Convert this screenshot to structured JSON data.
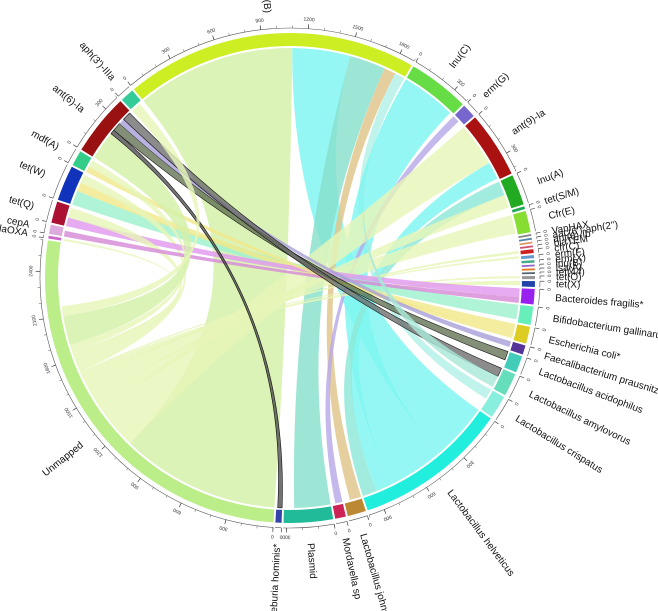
{
  "chart_data": {
    "type": "chord",
    "background": "#ffffff",
    "sectors": [
      {
        "name": "erm(B)",
        "value": 1900,
        "color": "#ccee22",
        "ticks": [
          0,
          300,
          600,
          900,
          1200,
          1500,
          1800
        ],
        "tick_step": 100
      },
      {
        "name": "lnu(C)",
        "value": 400,
        "color": "#66dd44",
        "ticks": [
          0,
          300
        ],
        "tick_step": 100
      },
      {
        "name": "erm(G)",
        "value": 90,
        "color": "#7766cc",
        "ticks": [
          0
        ],
        "tick_step": 0
      },
      {
        "name": "ant(9)-Ia",
        "value": 430,
        "color": "#aa1111",
        "ticks": [
          0,
          300
        ],
        "tick_step": 100
      },
      {
        "name": "lnu(A)",
        "value": 200,
        "color": "#22aa22",
        "ticks": [
          0
        ],
        "tick_step": 0
      },
      {
        "name": "tet(S/M)",
        "value": 18,
        "color": "#22aa55",
        "ticks": [
          0
        ],
        "tick_step": 0
      },
      {
        "name": "Cfr(E)",
        "value": 140,
        "color": "#88dd33",
        "ticks": [
          0
        ],
        "tick_step": 0
      },
      {
        "name": "VanHAX",
        "value": 12,
        "color": "#888888",
        "ticks": [
          0
        ],
        "tick_step": 0
      },
      {
        "name": "aac(6')-aph(2'')",
        "value": 12,
        "color": "#5588aa",
        "ticks": [
          0
        ],
        "tick_step": 0
      },
      {
        "name": "ant(6)-Ib",
        "value": 12,
        "color": "#dd9966",
        "ticks": [
          0
        ],
        "tick_step": 0
      },
      {
        "name": "blaTEM",
        "value": 12,
        "color": "#cc5577",
        "ticks": [
          0
        ],
        "tick_step": 0
      },
      {
        "name": "cfr(C)",
        "value": 25,
        "color": "#cc2222",
        "ticks": [
          0
        ],
        "tick_step": 0
      },
      {
        "name": "erm(F)",
        "value": 20,
        "color": "#6699cc",
        "ticks": [
          0
        ],
        "tick_step": 0
      },
      {
        "name": "erm(X)",
        "value": 16,
        "color": "#44aa88",
        "ticks": [
          0
        ],
        "tick_step": 0
      },
      {
        "name": "lnu(B)",
        "value": 12,
        "color": "#9966cc",
        "ticks": [
          0
        ],
        "tick_step": 0
      },
      {
        "name": "lsa(A)",
        "value": 12,
        "color": "#dd7722",
        "ticks": [
          0
        ],
        "tick_step": 0
      },
      {
        "name": "tet(44)",
        "value": 12,
        "color": "#556677",
        "ticks": [
          0
        ],
        "tick_step": 0
      },
      {
        "name": "tet(O)",
        "value": 20,
        "color": "#999999",
        "ticks": [
          0
        ],
        "tick_step": 0
      },
      {
        "name": "tet(X)",
        "value": 38,
        "color": "#2244aa",
        "ticks": [
          0
        ],
        "tick_step": 0
      },
      {
        "name": "Bacteroides fragilis*",
        "value": 100,
        "color": "#9922ee",
        "ticks": [
          0
        ],
        "tick_step": 0
      },
      {
        "name": "Bifidobacterium gallinarum",
        "value": 120,
        "color": "#66eebb",
        "ticks": [
          0
        ],
        "tick_step": 0
      },
      {
        "name": "Escherichia coli*",
        "value": 110,
        "color": "#ddcc22",
        "ticks": [
          0
        ],
        "tick_step": 0
      },
      {
        "name": "Faecalibacterium prausnitzii*",
        "value": 60,
        "color": "#553399",
        "ticks": [
          0
        ],
        "tick_step": 0
      },
      {
        "name": "Lactobacillus acidophilus",
        "value": 110,
        "color": "#44ccbb",
        "ticks": [
          0
        ],
        "tick_step": 0
      },
      {
        "name": "Lactobacillus amylovorus",
        "value": 150,
        "color": "#66ddbb",
        "ticks": [
          0
        ],
        "tick_step": 0
      },
      {
        "name": "Lactobacillus crispatus",
        "value": 150,
        "color": "#88eedd",
        "ticks": [
          0
        ],
        "tick_step": 0
      },
      {
        "name": "Lactobacillus helveticus",
        "value": 1000,
        "color": "#22eedd",
        "ticks": [
          0,
          300,
          600,
          900
        ],
        "tick_step": 100
      },
      {
        "name": "Lactobacillus johnsonii",
        "value": 120,
        "color": "#bb8833",
        "ticks": [
          0
        ],
        "tick_step": 0
      },
      {
        "name": "Mordavella sp",
        "value": 70,
        "color": "#cc2255",
        "ticks": [
          0
        ],
        "tick_step": 0
      },
      {
        "name": "Plasmid",
        "value": 320,
        "color": "#22bb99",
        "ticks": [
          0,
          300
        ],
        "tick_step": 100
      },
      {
        "name": "Roseburia hominis*",
        "value": 40,
        "color": "#3344aa",
        "ticks": [
          0
        ],
        "tick_step": 0
      },
      {
        "name": "Unmapped",
        "value": 2600,
        "color": "#bbee88",
        "ticks": [
          0,
          300,
          600,
          900,
          1200,
          1500,
          1800,
          2100,
          2400
        ],
        "tick_step": 100
      },
      {
        "name": "blaOXA",
        "value": 18,
        "color": "#cc66cc",
        "ticks": [
          0
        ],
        "tick_step": 0
      },
      {
        "name": "cepA",
        "value": 60,
        "color": "#ddaadd",
        "ticks": [
          0
        ],
        "tick_step": 0
      },
      {
        "name": "tet(Q)",
        "value": 140,
        "color": "#aa1133",
        "ticks": [
          0
        ],
        "tick_step": 0
      },
      {
        "name": "tet(W)",
        "value": 230,
        "color": "#1133bb",
        "ticks": [
          0
        ],
        "tick_step": 0
      },
      {
        "name": "mdf(A)",
        "value": 100,
        "color": "#33cc88",
        "ticks": [
          0
        ],
        "tick_step": 0
      },
      {
        "name": "ant(6)-Ia",
        "value": 400,
        "color": "#991111",
        "ticks": [
          0,
          300
        ],
        "tick_step": 100
      },
      {
        "name": "aph(3')-IIIa",
        "value": 90,
        "color": "#33cc99",
        "ticks": [
          0
        ],
        "tick_step": 0
      }
    ],
    "links": [
      {
        "from": "erm(B)",
        "to": "Unmapped",
        "value": 1100,
        "color": "#d4f0a8"
      },
      {
        "from": "erm(B)",
        "to": "Lactobacillus helveticus",
        "value": 400,
        "color": "#7ef5f0"
      },
      {
        "from": "erm(B)",
        "to": "Plasmid",
        "value": 250,
        "color": "#88dfcc"
      },
      {
        "from": "erm(B)",
        "to": "Lactobacillus johnsonii",
        "value": 80,
        "color": "#e0c48a"
      },
      {
        "from": "erm(B)",
        "to": "Lactobacillus crispatus",
        "value": 70,
        "color": "#b2f0e6"
      },
      {
        "from": "lnu(C)",
        "value": 380,
        "to": "Lactobacillus helveticus",
        "color": "#7ef5f0"
      },
      {
        "from": "erm(G)",
        "to": "Mordavella sp",
        "value": 50,
        "color": "#b7a8e8"
      },
      {
        "from": "ant(9)-Ia",
        "to": "Unmapped",
        "value": 300,
        "color": "#e6f5b8"
      },
      {
        "from": "ant(9)-Ia",
        "to": "Lactobacillus helveticus",
        "value": 120,
        "color": "#7ef5f0"
      },
      {
        "from": "lnu(A)",
        "to": "Lactobacillus helveticus",
        "value": 100,
        "color": "#8ee8d8"
      },
      {
        "from": "lnu(A)",
        "to": "Unmapped",
        "value": 90,
        "color": "#e6f5b8"
      },
      {
        "from": "Cfr(E)",
        "to": "Unmapped",
        "value": 130,
        "color": "#e6f5b8"
      },
      {
        "from": "cfr(C)",
        "to": "Unmapped",
        "value": 20,
        "color": "#e6f5b8"
      },
      {
        "from": "tet(X)",
        "to": "Unmapped",
        "value": 30,
        "color": "#e6f5b8"
      },
      {
        "from": "tet(O)",
        "to": "Unmapped",
        "value": 15,
        "color": "#e6f5b8"
      },
      {
        "from": "erm(F)",
        "to": "Unmapped",
        "value": 15,
        "color": "#e6f5b8"
      },
      {
        "from": "tet(W)",
        "to": "Bifidobacterium gallinarum",
        "value": 100,
        "color": "#9ff2d0"
      },
      {
        "from": "tet(W)",
        "to": "Escherichia coli*",
        "value": 60,
        "color": "#f2e88a"
      },
      {
        "from": "tet(W)",
        "to": "Unmapped",
        "value": 60,
        "color": "#e6f5b8"
      },
      {
        "from": "tet(Q)",
        "to": "Bacteroides fragilis*",
        "value": 60,
        "color": "#e099ee"
      },
      {
        "from": "tet(Q)",
        "to": "Unmapped",
        "value": 70,
        "color": "#e6f5b8"
      },
      {
        "from": "cepA",
        "to": "Bacteroides fragilis*",
        "value": 40,
        "color": "#d78ad8"
      },
      {
        "from": "blaOXA",
        "to": "Unmapped",
        "value": 15,
        "color": "#e6f5b8"
      },
      {
        "from": "mdf(A)",
        "to": "Escherichia coli*",
        "value": 40,
        "color": "#f2e88a"
      },
      {
        "from": "mdf(A)",
        "to": "Unmapped",
        "value": 50,
        "color": "#e6f5b8"
      },
      {
        "from": "ant(6)-Ia",
        "to": "Unmapped",
        "value": 200,
        "color": "#d4f0a8"
      },
      {
        "from": "ant(6)-Ia",
        "to": "Roseburia hominis*",
        "value": 30,
        "color": "#444444"
      },
      {
        "from": "ant(6)-Ia",
        "to": "Lactobacillus acidophilus",
        "value": 60,
        "color": "#5a6a4a"
      },
      {
        "from": "ant(6)-Ia",
        "to": "Faecalibacterium prausnitzii*",
        "value": 40,
        "color": "#a9a0d8"
      },
      {
        "from": "ant(6)-Ia",
        "to": "Lactobacillus amylovorus",
        "value": 60,
        "color": "#666666"
      },
      {
        "from": "aph(3')-IIIa",
        "to": "Unmapped",
        "value": 70,
        "color": "#e6f5b8"
      },
      {
        "from": "erm(B)",
        "to": "Lactobacillus amylovorus",
        "value": 80,
        "color": "#a8e8d8"
      }
    ]
  }
}
